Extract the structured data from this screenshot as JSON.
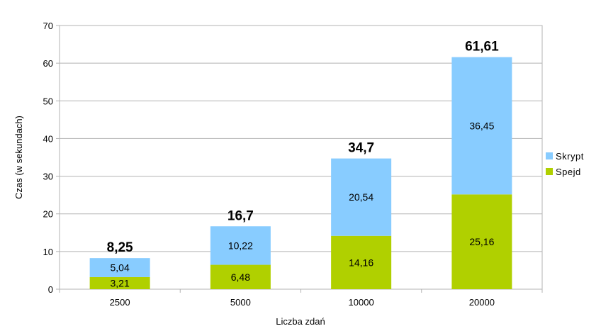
{
  "chart_data": {
    "type": "bar",
    "stacked": true,
    "categories": [
      "2500",
      "5000",
      "10000",
      "20000"
    ],
    "series": [
      {
        "name": "Spejd",
        "values": [
          3.21,
          6.48,
          14.16,
          25.16
        ],
        "color": "#b0d000",
        "labels": [
          "3,21",
          "6,48",
          "14,16",
          "25,16"
        ]
      },
      {
        "name": "Skrypt",
        "values": [
          5.04,
          10.22,
          20.54,
          36.45
        ],
        "color": "#88ccff",
        "labels": [
          "5,04",
          "10,22",
          "20,54",
          "36,45"
        ]
      }
    ],
    "totals": [
      8.25,
      16.7,
      34.7,
      61.61
    ],
    "total_labels": [
      "8,25",
      "16,7",
      "34,7",
      "61,61"
    ],
    "xlabel": "Liczba zdań",
    "ylabel": "Czas (w sekundach)",
    "ylim": [
      0,
      70
    ],
    "yticks": [
      "0",
      "10",
      "20",
      "30",
      "40",
      "50",
      "60",
      "70"
    ],
    "grid": true,
    "legend": "right",
    "legend_items": [
      "Skrypt",
      "Spejd"
    ]
  }
}
